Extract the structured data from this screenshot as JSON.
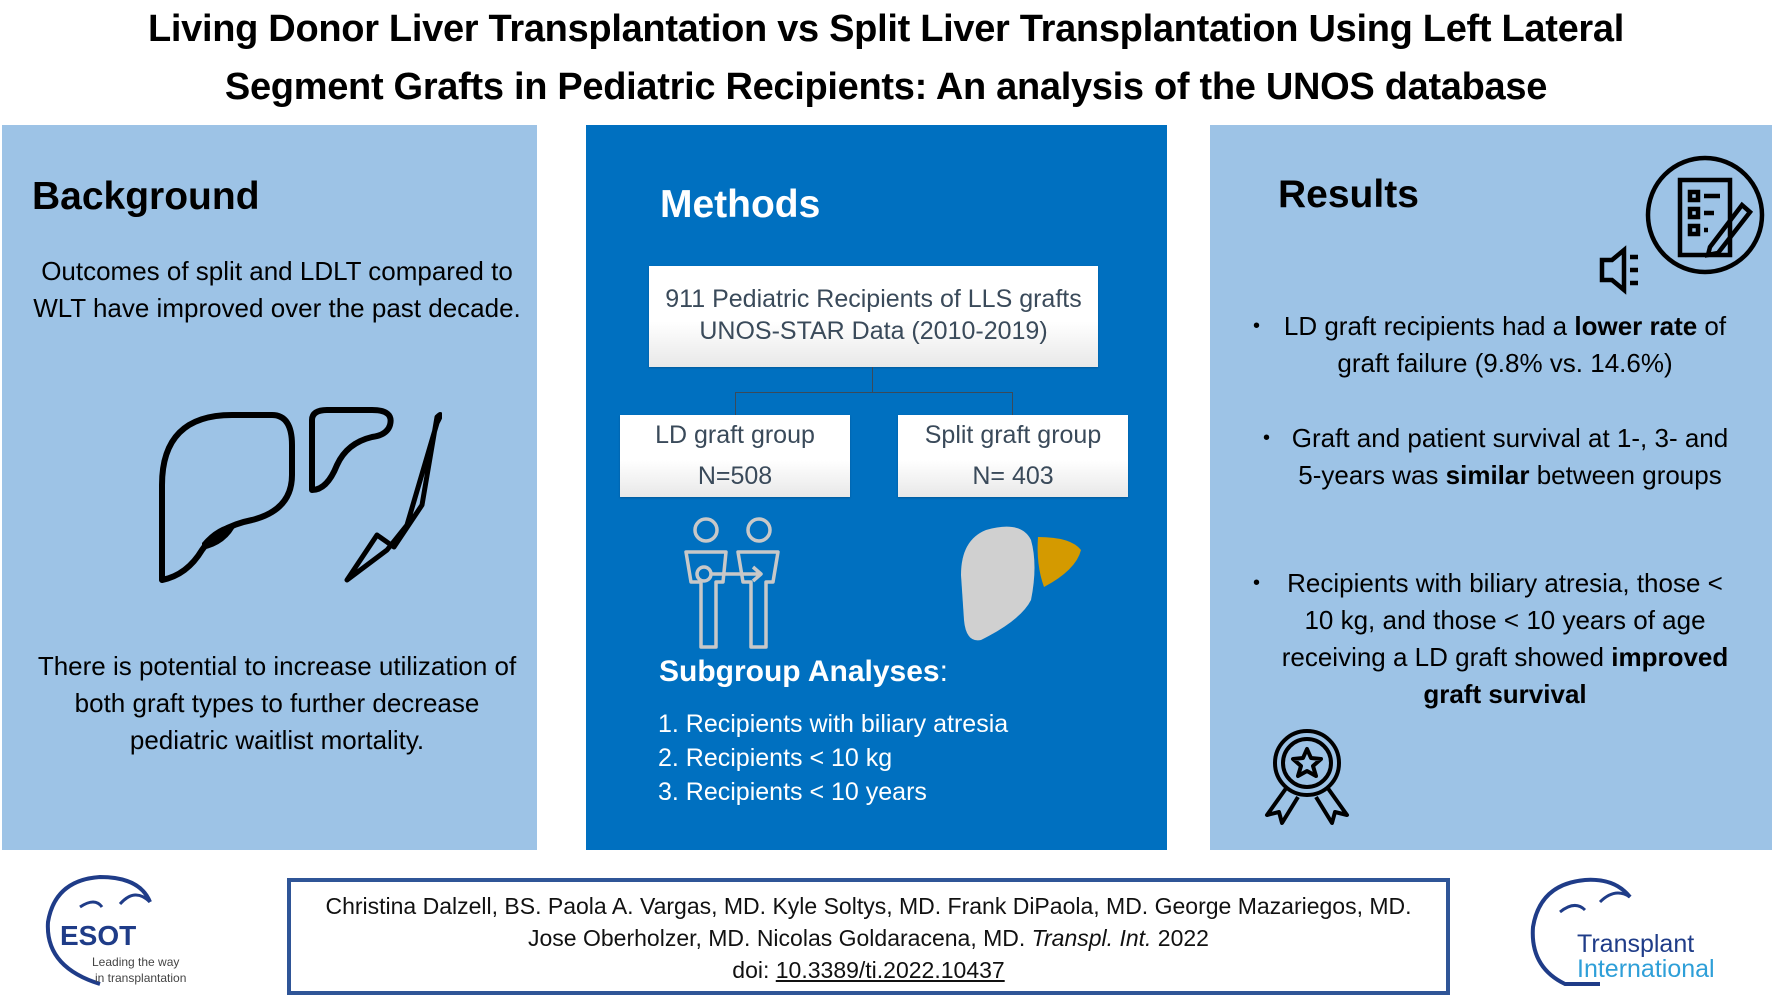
{
  "title": {
    "line1": "Living Donor Liver Transplantation vs Split Liver Transplantation Using Left Lateral",
    "line2": "Segment Grafts in Pediatric Recipients: An analysis of the UNOS database"
  },
  "background": {
    "heading": "Background",
    "text1": "Outcomes of split and LDLT compared to WLT have improved over the past decade.",
    "icon": "liver-scalpel-icon",
    "text2": "There is potential to increase utilization of both graft types to further decrease pediatric waitlist mortality."
  },
  "methods": {
    "heading": "Methods",
    "cohort_line1": "911 Pediatric Recipients of LLS grafts",
    "cohort_line2": "UNOS-STAR Data (2010-2019)",
    "groups": [
      {
        "label": "LD graft group",
        "n": "N=508",
        "icon": "living-donor-icon"
      },
      {
        "label": "Split graft group",
        "n": "N= 403",
        "icon": "split-liver-icon"
      }
    ],
    "subgroup_heading": "Subgroup Analyses",
    "subgroup_colon": ":",
    "subgroups": [
      "1. Recipients with biliary atresia",
      "2. Recipients < 10 kg",
      "3. Recipients  < 10 years"
    ],
    "colors": {
      "panel": "#0070c0",
      "split_segment": "#d49a00",
      "liver_gray": "#d0d0d0"
    }
  },
  "results": {
    "heading": "Results",
    "icon": "checklist-announcement-icon",
    "bullets": [
      {
        "parts": [
          {
            "text": "LD graft recipients had a ",
            "bold": false
          },
          {
            "text": "lower rate",
            "bold": true
          },
          {
            "text": " of graft failure (9.8% vs. 14.6%)",
            "bold": false
          }
        ]
      },
      {
        "parts": [
          {
            "text": "Graft and patient survival at 1-, 3- and 5-years was ",
            "bold": false
          },
          {
            "text": "similar",
            "bold": true
          },
          {
            "text": " between groups",
            "bold": false
          }
        ]
      },
      {
        "parts": [
          {
            "text": "Recipients with biliary atresia, those < 10 kg, and those < 10 years of age receiving a LD graft showed ",
            "bold": false
          },
          {
            "text": "improved graft survival",
            "bold": true
          }
        ]
      }
    ],
    "award_icon": "award-ribbon-icon"
  },
  "footer": {
    "esot": {
      "name": "ESOT",
      "tagline1": "Leading the way",
      "tagline2": "in transplantation"
    },
    "citation_line1": "Christina Dalzell, BS. Paola A. Vargas, MD. Kyle Soltys, MD. Frank DiPaola, MD. George Mazariegos, MD.",
    "citation_line2_prefix": "Jose Oberholzer, MD. Nicolas Goldaracena, MD. ",
    "journal": "Transpl. Int.",
    "year": " 2022",
    "doi_label": "doi: ",
    "doi": "10.3389/ti.2022.10437",
    "ti": {
      "line1": "Transplant",
      "line2": "International"
    }
  }
}
